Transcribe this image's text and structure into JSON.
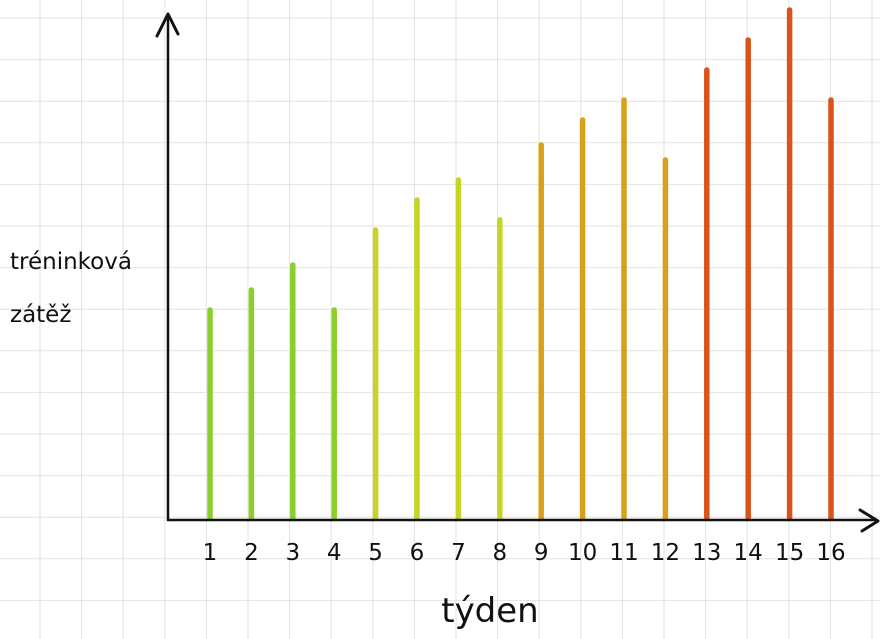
{
  "chart_data": {
    "type": "bar",
    "title": "",
    "xlabel": "týden",
    "ylabel_lines": [
      "tréninková",
      "zátěž"
    ],
    "categories": [
      "1",
      "2",
      "3",
      "4",
      "5",
      "6",
      "7",
      "8",
      "9",
      "10",
      "11",
      "12",
      "13",
      "14",
      "15",
      "16"
    ],
    "values": [
      21,
      23,
      25.5,
      21,
      29,
      32,
      34,
      30,
      37.5,
      40,
      42,
      36,
      45,
      48,
      51,
      42
    ],
    "ylim": [
      0,
      51
    ],
    "grid": true,
    "legend": "none",
    "colors": [
      "#8ccf2a",
      "#8ccf2a",
      "#8ccf2a",
      "#8ccf2a",
      "#c8d424",
      "#c8d424",
      "#c8d424",
      "#c8d424",
      "#d9a01a",
      "#d9a01a",
      "#d9a01a",
      "#d9a01a",
      "#d9531a",
      "#d9531a",
      "#d9531a",
      "#d9531a"
    ],
    "grid_color": "#e3e3e3",
    "axis_color": "#111111"
  }
}
